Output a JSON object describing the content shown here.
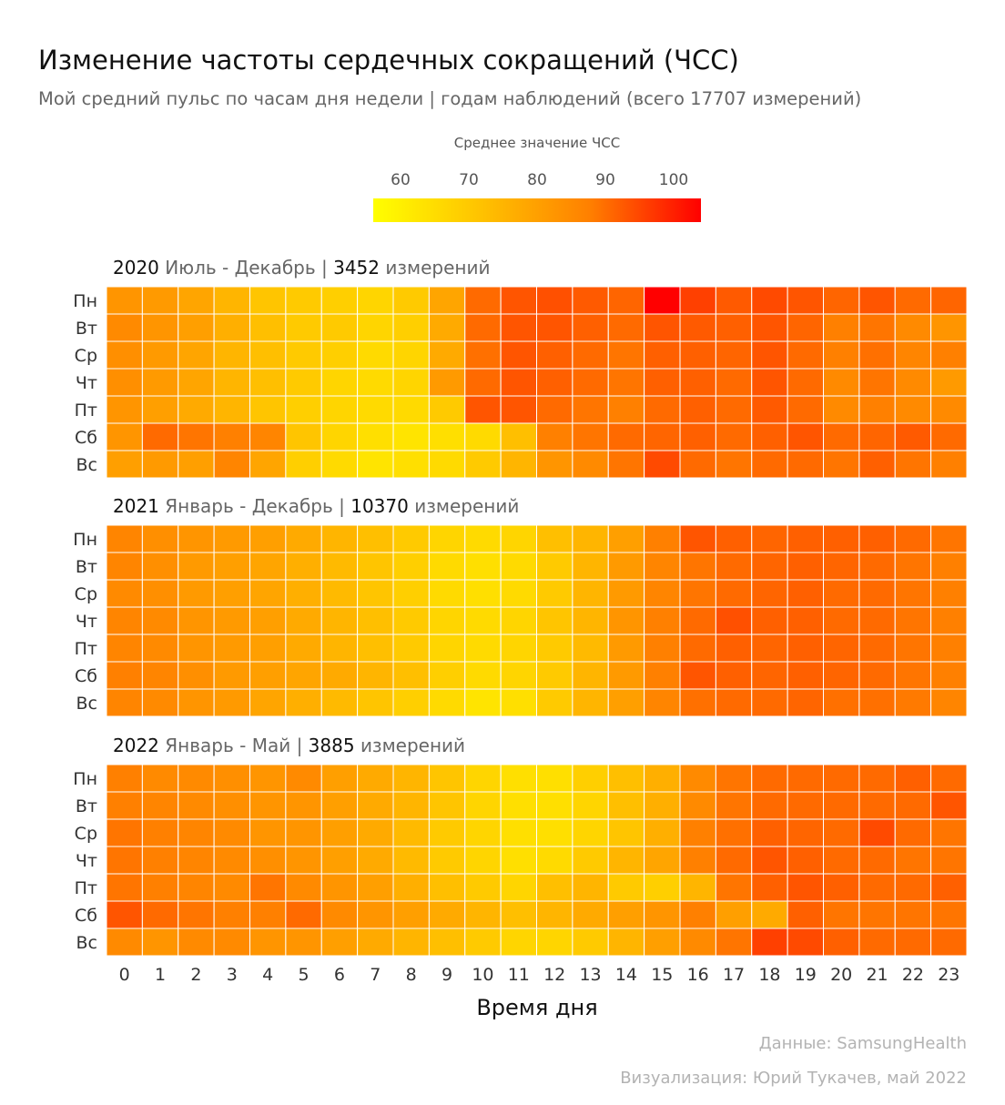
{
  "title": "Изменение частоты сердечных сокращений (ЧСС)",
  "subtitle": "Мой средний пульс по часам дня недели | годам наблюдений (всего 17707 измерений)",
  "legend": {
    "title": "Среднее значение ЧСС",
    "ticks": [
      "60",
      "70",
      "80",
      "90",
      "100"
    ],
    "min": 56,
    "max": 104,
    "low_color": "#FFFF00",
    "high_color": "#FF0000"
  },
  "x_axis_title": "Время дня",
  "caption": {
    "source": "Данные: SamsungHealth",
    "author": "Визуализация: Юрий Тукачев, май 2022"
  },
  "chart_data": {
    "type": "heatmap",
    "x_label": "Время дня",
    "hours": [
      "0",
      "1",
      "2",
      "3",
      "4",
      "5",
      "6",
      "7",
      "8",
      "9",
      "10",
      "11",
      "12",
      "13",
      "14",
      "15",
      "16",
      "17",
      "18",
      "19",
      "20",
      "21",
      "22",
      "23"
    ],
    "days": [
      "Пн",
      "Вт",
      "Ср",
      "Чт",
      "Пт",
      "Сб",
      "Вс"
    ],
    "value_range": [
      56,
      104
    ],
    "panels": [
      {
        "year": "2020",
        "period": "Июль - Декабрь |",
        "count": "3452",
        "count_label": "измерений",
        "values": [
          [
            76,
            75,
            73,
            70,
            67,
            66,
            65,
            64,
            66,
            73,
            84,
            88,
            89,
            87,
            85,
            104,
            92,
            87,
            90,
            88,
            85,
            88,
            84,
            85
          ],
          [
            78,
            76,
            74,
            71,
            68,
            66,
            66,
            64,
            65,
            72,
            84,
            88,
            88,
            86,
            84,
            88,
            87,
            86,
            88,
            85,
            80,
            82,
            78,
            76
          ],
          [
            77,
            75,
            73,
            70,
            68,
            66,
            65,
            63,
            64,
            72,
            83,
            88,
            86,
            84,
            82,
            86,
            86,
            85,
            88,
            84,
            80,
            83,
            79,
            80
          ],
          [
            77,
            75,
            73,
            70,
            68,
            66,
            64,
            63,
            64,
            75,
            84,
            88,
            86,
            84,
            82,
            86,
            86,
            84,
            88,
            84,
            78,
            82,
            78,
            75
          ],
          [
            76,
            74,
            72,
            70,
            67,
            65,
            64,
            63,
            63,
            66,
            88,
            88,
            84,
            82,
            80,
            84,
            86,
            84,
            87,
            84,
            78,
            80,
            78,
            78
          ],
          [
            76,
            84,
            82,
            80,
            79,
            67,
            64,
            62,
            61,
            62,
            63,
            68,
            80,
            82,
            84,
            85,
            86,
            84,
            86,
            88,
            84,
            85,
            87,
            84
          ],
          [
            74,
            75,
            74,
            79,
            73,
            65,
            63,
            61,
            62,
            63,
            66,
            70,
            76,
            78,
            82,
            90,
            84,
            82,
            84,
            84,
            82,
            86,
            82,
            80
          ]
        ]
      },
      {
        "year": "2021",
        "period": "Январь - Декабрь |",
        "count": "10370",
        "count_label": "измерений",
        "values": [
          [
            79,
            77,
            76,
            75,
            74,
            72,
            70,
            68,
            66,
            64,
            63,
            64,
            68,
            70,
            74,
            80,
            88,
            86,
            85,
            86,
            86,
            86,
            84,
            82
          ],
          [
            79,
            77,
            75,
            74,
            73,
            71,
            69,
            67,
            65,
            63,
            62,
            63,
            66,
            70,
            75,
            79,
            82,
            84,
            85,
            86,
            85,
            84,
            82,
            80
          ],
          [
            78,
            77,
            75,
            74,
            73,
            71,
            69,
            67,
            65,
            63,
            62,
            63,
            66,
            70,
            75,
            79,
            82,
            84,
            85,
            86,
            84,
            84,
            82,
            80
          ],
          [
            79,
            78,
            76,
            75,
            74,
            72,
            70,
            68,
            66,
            64,
            63,
            64,
            67,
            70,
            76,
            80,
            84,
            89,
            86,
            86,
            84,
            84,
            82,
            80
          ],
          [
            79,
            78,
            76,
            75,
            74,
            72,
            70,
            68,
            66,
            64,
            63,
            64,
            66,
            69,
            75,
            80,
            84,
            86,
            85,
            86,
            85,
            84,
            82,
            80
          ],
          [
            80,
            79,
            77,
            75,
            74,
            73,
            72,
            70,
            68,
            65,
            63,
            64,
            66,
            70,
            75,
            80,
            88,
            86,
            85,
            86,
            85,
            84,
            82,
            80
          ],
          [
            79,
            78,
            76,
            75,
            73,
            71,
            69,
            67,
            65,
            63,
            61,
            62,
            66,
            70,
            74,
            79,
            83,
            84,
            84,
            85,
            83,
            83,
            81,
            79
          ]
        ]
      },
      {
        "year": "2022",
        "period": "Январь - Май |",
        "count": "3885",
        "count_label": "измерений",
        "values": [
          [
            80,
            78,
            78,
            77,
            76,
            78,
            74,
            72,
            70,
            67,
            64,
            62,
            62,
            65,
            68,
            71,
            78,
            82,
            84,
            84,
            84,
            84,
            86,
            84
          ],
          [
            80,
            79,
            78,
            77,
            76,
            76,
            74,
            72,
            70,
            67,
            64,
            62,
            62,
            64,
            68,
            71,
            78,
            82,
            84,
            84,
            84,
            84,
            84,
            88
          ],
          [
            82,
            80,
            79,
            78,
            76,
            76,
            74,
            72,
            69,
            66,
            64,
            62,
            62,
            64,
            67,
            71,
            80,
            83,
            86,
            85,
            84,
            90,
            84,
            82
          ],
          [
            82,
            80,
            79,
            78,
            77,
            76,
            74,
            72,
            69,
            66,
            64,
            62,
            63,
            66,
            70,
            73,
            80,
            84,
            88,
            86,
            84,
            84,
            82,
            82
          ],
          [
            82,
            80,
            79,
            78,
            82,
            78,
            76,
            74,
            71,
            68,
            66,
            64,
            68,
            70,
            66,
            65,
            70,
            82,
            86,
            88,
            86,
            84,
            84,
            86
          ],
          [
            88,
            84,
            82,
            80,
            80,
            84,
            78,
            76,
            74,
            72,
            70,
            68,
            70,
            72,
            74,
            76,
            80,
            74,
            72,
            86,
            82,
            82,
            82,
            82
          ],
          [
            78,
            76,
            78,
            78,
            76,
            76,
            74,
            72,
            70,
            68,
            66,
            64,
            64,
            66,
            70,
            74,
            78,
            82,
            92,
            90,
            86,
            84,
            84,
            84
          ]
        ]
      }
    ]
  }
}
